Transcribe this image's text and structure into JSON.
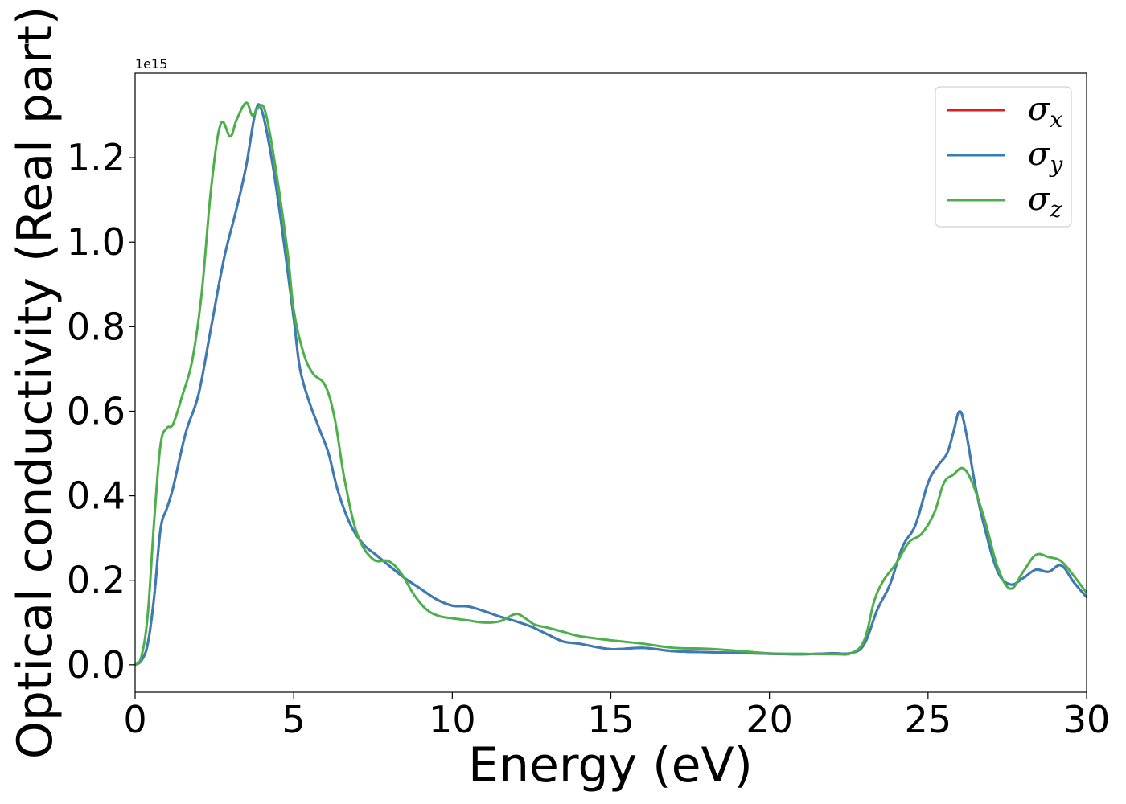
{
  "chart_data": {
    "type": "line",
    "title": "",
    "xlabel": "Energy (eV)",
    "ylabel": "Optical conductivity (Real part)",
    "y_offset_label": "1e15",
    "xlim": [
      0,
      30
    ],
    "ylim": [
      -0.065,
      1.4
    ],
    "x_ticks": [
      0,
      5,
      10,
      15,
      20,
      25,
      30
    ],
    "x_tick_labels": [
      "0",
      "5",
      "10",
      "15",
      "20",
      "25",
      "30"
    ],
    "y_ticks": [
      0.0,
      0.2,
      0.4,
      0.6,
      0.8,
      1.0,
      1.2
    ],
    "y_tick_labels": [
      "0.0",
      "0.2",
      "0.4",
      "0.6",
      "0.8",
      "1.0",
      "1.2"
    ],
    "grid": false,
    "legend_position": "top-right",
    "series": [
      {
        "name": "σx",
        "legend_base": "σ",
        "legend_sub": "x",
        "color": "#e41a1c",
        "x": [
          0,
          0.2,
          0.4,
          0.6,
          0.8,
          1.0,
          1.2,
          1.6,
          2.0,
          2.4,
          2.8,
          3.2,
          3.5,
          3.8,
          4.0,
          4.3,
          4.6,
          5.0,
          5.2,
          5.5,
          5.8,
          6.1,
          6.4,
          6.8,
          7.2,
          7.6,
          8.0,
          8.5,
          9.0,
          9.5,
          10.0,
          10.5,
          11.0,
          11.5,
          12.0,
          12.5,
          13.0,
          13.5,
          14.0,
          15.0,
          16.0,
          17.0,
          18.0,
          19.0,
          20.0,
          21.0,
          22.0,
          22.6,
          23.0,
          23.4,
          23.8,
          24.2,
          24.6,
          25.0,
          25.3,
          25.6,
          25.8,
          26.0,
          26.2,
          26.5,
          26.8,
          27.2,
          27.6,
          28.0,
          28.4,
          28.8,
          29.2,
          29.6,
          30.0
        ],
        "y": [
          0.0,
          0.01,
          0.05,
          0.16,
          0.32,
          0.37,
          0.42,
          0.55,
          0.64,
          0.8,
          0.96,
          1.08,
          1.18,
          1.31,
          1.31,
          1.2,
          1.05,
          0.82,
          0.7,
          0.62,
          0.56,
          0.5,
          0.41,
          0.33,
          0.285,
          0.26,
          0.235,
          0.205,
          0.18,
          0.155,
          0.14,
          0.138,
          0.127,
          0.114,
          0.103,
          0.09,
          0.072,
          0.055,
          0.05,
          0.037,
          0.04,
          0.032,
          0.03,
          0.028,
          0.026,
          0.025,
          0.027,
          0.028,
          0.05,
          0.13,
          0.19,
          0.28,
          0.33,
          0.43,
          0.47,
          0.5,
          0.55,
          0.6,
          0.55,
          0.42,
          0.32,
          0.22,
          0.19,
          0.205,
          0.225,
          0.22,
          0.235,
          0.195,
          0.16
        ]
      },
      {
        "name": "σy",
        "legend_base": "σ",
        "legend_sub": "y",
        "color": "#377eb8",
        "x": [
          0,
          0.2,
          0.4,
          0.6,
          0.8,
          1.0,
          1.2,
          1.6,
          2.0,
          2.4,
          2.8,
          3.2,
          3.5,
          3.8,
          4.0,
          4.3,
          4.6,
          5.0,
          5.2,
          5.5,
          5.8,
          6.1,
          6.4,
          6.8,
          7.2,
          7.6,
          8.0,
          8.5,
          9.0,
          9.5,
          10.0,
          10.5,
          11.0,
          11.5,
          12.0,
          12.5,
          13.0,
          13.5,
          14.0,
          15.0,
          16.0,
          17.0,
          18.0,
          19.0,
          20.0,
          21.0,
          22.0,
          22.6,
          23.0,
          23.4,
          23.8,
          24.2,
          24.6,
          25.0,
          25.3,
          25.6,
          25.8,
          26.0,
          26.2,
          26.5,
          26.8,
          27.2,
          27.6,
          28.0,
          28.4,
          28.8,
          29.2,
          29.6,
          30.0
        ],
        "y": [
          0.0,
          0.01,
          0.05,
          0.16,
          0.32,
          0.37,
          0.42,
          0.55,
          0.64,
          0.8,
          0.96,
          1.08,
          1.18,
          1.31,
          1.31,
          1.2,
          1.05,
          0.82,
          0.7,
          0.62,
          0.56,
          0.5,
          0.41,
          0.33,
          0.285,
          0.26,
          0.235,
          0.205,
          0.18,
          0.155,
          0.14,
          0.138,
          0.127,
          0.114,
          0.103,
          0.09,
          0.072,
          0.055,
          0.05,
          0.037,
          0.04,
          0.032,
          0.03,
          0.028,
          0.026,
          0.025,
          0.027,
          0.028,
          0.05,
          0.13,
          0.19,
          0.28,
          0.33,
          0.43,
          0.47,
          0.5,
          0.55,
          0.6,
          0.55,
          0.42,
          0.32,
          0.22,
          0.19,
          0.205,
          0.225,
          0.22,
          0.235,
          0.195,
          0.16
        ]
      },
      {
        "name": "σz",
        "legend_base": "σ",
        "legend_sub": "z",
        "color": "#4daf4a",
        "x": [
          0,
          0.2,
          0.4,
          0.6,
          0.8,
          1.0,
          1.2,
          1.5,
          1.8,
          2.1,
          2.4,
          2.7,
          3.0,
          3.2,
          3.5,
          3.7,
          3.9,
          4.1,
          4.4,
          4.8,
          5.0,
          5.3,
          5.6,
          6.0,
          6.3,
          6.6,
          7.0,
          7.5,
          8.0,
          8.4,
          8.8,
          9.2,
          9.6,
          10.0,
          10.5,
          11.0,
          11.5,
          12.0,
          12.3,
          12.6,
          13.0,
          13.5,
          14.0,
          15.0,
          16.0,
          17.0,
          18.0,
          19.0,
          20.0,
          21.0,
          22.0,
          22.6,
          23.0,
          23.3,
          23.6,
          24.0,
          24.4,
          24.8,
          25.2,
          25.5,
          25.8,
          26.1,
          26.4,
          26.8,
          27.2,
          27.6,
          28.0,
          28.4,
          28.8,
          29.2,
          29.6,
          30.0
        ],
        "y": [
          0.0,
          0.02,
          0.12,
          0.34,
          0.52,
          0.56,
          0.57,
          0.64,
          0.72,
          0.88,
          1.13,
          1.28,
          1.25,
          1.29,
          1.33,
          1.3,
          1.32,
          1.31,
          1.19,
          0.98,
          0.84,
          0.74,
          0.69,
          0.66,
          0.58,
          0.44,
          0.31,
          0.25,
          0.245,
          0.215,
          0.165,
          0.13,
          0.115,
          0.11,
          0.105,
          0.1,
          0.103,
          0.12,
          0.11,
          0.095,
          0.088,
          0.078,
          0.068,
          0.058,
          0.05,
          0.04,
          0.038,
          0.033,
          0.027,
          0.026,
          0.025,
          0.028,
          0.06,
          0.15,
          0.2,
          0.24,
          0.29,
          0.31,
          0.36,
          0.43,
          0.45,
          0.465,
          0.43,
          0.34,
          0.23,
          0.18,
          0.22,
          0.26,
          0.255,
          0.245,
          0.21,
          0.17
        ]
      }
    ]
  }
}
